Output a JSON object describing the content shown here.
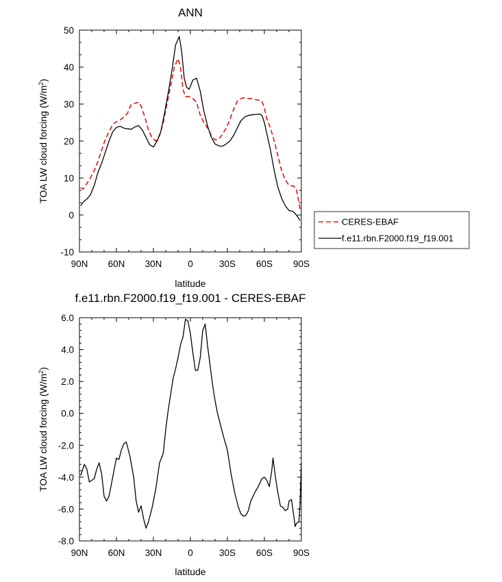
{
  "chart_data": [
    {
      "type": "line",
      "title": "ANN",
      "xlabel": "latitude",
      "ylabel": "TOA LW cloud forcing (W/m",
      "ylabel_sup": "2",
      "ylabel_close": ")",
      "xlim": [
        90,
        -90
      ],
      "ylim": [
        -10,
        50
      ],
      "x_ticks": [
        90,
        60,
        30,
        0,
        -30,
        -60,
        -90
      ],
      "x_tick_labels": [
        "90N",
        "60N",
        "30N",
        "0",
        "30S",
        "60S",
        "90S"
      ],
      "y_ticks": [
        -10,
        0,
        10,
        20,
        30,
        40,
        50
      ],
      "y_tick_labels": [
        "-10",
        "0",
        "10",
        "20",
        "30",
        "40",
        "50"
      ],
      "legend_position": "bottom-right, outside plot",
      "series": [
        {
          "name": "CERES-EBAF",
          "color": "#e01010",
          "dash": "dashed",
          "points": [
            [
              89,
              7.4
            ],
            [
              87,
              7.0
            ],
            [
              85,
              8.0
            ],
            [
              82,
              9.5
            ],
            [
              78,
              12.0
            ],
            [
              75,
              14.5
            ],
            [
              72,
              17.5
            ],
            [
              69,
              20.5
            ],
            [
              66,
              22.5
            ],
            [
              63,
              24.5
            ],
            [
              60,
              25.2
            ],
            [
              57,
              25.7
            ],
            [
              54,
              26.5
            ],
            [
              51,
              27.5
            ],
            [
              48,
              30.0
            ],
            [
              45,
              30.2
            ],
            [
              42,
              30.5
            ],
            [
              40,
              29.5
            ],
            [
              37,
              26.5
            ],
            [
              34,
              23.0
            ],
            [
              31,
              20.8
            ],
            [
              28,
              20.0
            ],
            [
              25,
              21.5
            ],
            [
              22,
              25.0
            ],
            [
              19,
              30.0
            ],
            [
              16,
              35.0
            ],
            [
              13,
              40.0
            ],
            [
              10,
              42.3
            ],
            [
              8,
              40.0
            ],
            [
              6,
              34.0
            ],
            [
              4,
              32.0
            ],
            [
              1,
              32.0
            ],
            [
              -2,
              31.5
            ],
            [
              -5,
              30.5
            ],
            [
              -8,
              27.0
            ],
            [
              -11,
              25.0
            ],
            [
              -14,
              23.5
            ],
            [
              -17,
              21.5
            ],
            [
              -20,
              20.3
            ],
            [
              -23,
              20.5
            ],
            [
              -26,
              21.8
            ],
            [
              -29,
              23.5
            ],
            [
              -32,
              25.8
            ],
            [
              -35,
              28.5
            ],
            [
              -38,
              30.8
            ],
            [
              -41,
              31.5
            ],
            [
              -44,
              31.7
            ],
            [
              -47,
              31.5
            ],
            [
              -50,
              31.5
            ],
            [
              -53,
              31.2
            ],
            [
              -56,
              31.0
            ],
            [
              -58,
              30.8
            ],
            [
              -60,
              29.0
            ],
            [
              -62,
              26.0
            ],
            [
              -65,
              23.5
            ],
            [
              -68,
              20.0
            ],
            [
              -71,
              16.0
            ],
            [
              -74,
              12.0
            ],
            [
              -77,
              9.5
            ],
            [
              -80,
              8.0
            ],
            [
              -84,
              7.8
            ],
            [
              -86,
              7.0
            ],
            [
              -88,
              3.5
            ],
            [
              -89,
              1.5
            ]
          ]
        },
        {
          "name": "f.e11.rbn.F2000.f19_f19.001",
          "color": "#000000",
          "dash": "solid",
          "points": [
            [
              89,
              2.5
            ],
            [
              87,
              3.5
            ],
            [
              84,
              4.3
            ],
            [
              81,
              5.5
            ],
            [
              78,
              8.0
            ],
            [
              75,
              11.5
            ],
            [
              72,
              14.0
            ],
            [
              69,
              17.0
            ],
            [
              66,
              20.0
            ],
            [
              63,
              22.5
            ],
            [
              60,
              23.7
            ],
            [
              57,
              24.0
            ],
            [
              54,
              23.5
            ],
            [
              51,
              23.3
            ],
            [
              48,
              23.2
            ],
            [
              45,
              23.8
            ],
            [
              42,
              24.2
            ],
            [
              39,
              23.0
            ],
            [
              36,
              21.0
            ],
            [
              33,
              19.0
            ],
            [
              30,
              18.4
            ],
            [
              27,
              20.0
            ],
            [
              24,
              22.5
            ],
            [
              21,
              27.5
            ],
            [
              18,
              33.0
            ],
            [
              15,
              39.0
            ],
            [
              12,
              46.0
            ],
            [
              9,
              48.3
            ],
            [
              7,
              44.0
            ],
            [
              5,
              37.0
            ],
            [
              3,
              34.5
            ],
            [
              1,
              34.0
            ],
            [
              -2,
              36.5
            ],
            [
              -5,
              37.0
            ],
            [
              -8,
              33.5
            ],
            [
              -11,
              28.0
            ],
            [
              -14,
              24.0
            ],
            [
              -17,
              21.0
            ],
            [
              -20,
              19.2
            ],
            [
              -23,
              18.7
            ],
            [
              -26,
              18.6
            ],
            [
              -29,
              19.2
            ],
            [
              -32,
              20.0
            ],
            [
              -35,
              21.5
            ],
            [
              -38,
              23.5
            ],
            [
              -41,
              25.5
            ],
            [
              -44,
              26.5
            ],
            [
              -47,
              26.9
            ],
            [
              -50,
              27.1
            ],
            [
              -53,
              27.2
            ],
            [
              -56,
              27.3
            ],
            [
              -58,
              27.0
            ],
            [
              -60,
              25.0
            ],
            [
              -62,
              22.0
            ],
            [
              -65,
              17.5
            ],
            [
              -68,
              12.0
            ],
            [
              -71,
              7.5
            ],
            [
              -74,
              4.5
            ],
            [
              -77,
              2.5
            ],
            [
              -80,
              1.2
            ],
            [
              -83,
              1.0
            ],
            [
              -86,
              0.0
            ],
            [
              -88,
              -1.0
            ],
            [
              -89,
              -1.5
            ]
          ]
        }
      ]
    },
    {
      "type": "line",
      "title": "f.e11.rbn.F2000.f19_f19.001 - CERES-EBAF",
      "xlabel": "latitude",
      "ylabel": "TOA LW cloud forcing (W/m",
      "ylabel_sup": "2",
      "ylabel_close": ")",
      "xlim": [
        90,
        -90
      ],
      "ylim": [
        -8,
        6
      ],
      "x_ticks": [
        90,
        60,
        30,
        0,
        -30,
        -60,
        -90
      ],
      "x_tick_labels": [
        "90N",
        "60N",
        "30N",
        "0",
        "30S",
        "60S",
        "90S"
      ],
      "y_ticks": [
        -8,
        -6,
        -4,
        -2,
        0,
        2,
        4,
        6
      ],
      "y_tick_labels": [
        "-8.0",
        "-6.0",
        "-4.0",
        "-2.0",
        "0.0",
        "2.0",
        "4.0",
        "6.0"
      ],
      "series": [
        {
          "color": "#000000",
          "dash": "solid",
          "points": [
            [
              89,
              -3.9
            ],
            [
              86,
              -3.2
            ],
            [
              84,
              -3.5
            ],
            [
              82,
              -4.3
            ],
            [
              80,
              -4.2
            ],
            [
              78,
              -4.1
            ],
            [
              76,
              -3.5
            ],
            [
              74,
              -3.1
            ],
            [
              72,
              -3.8
            ],
            [
              70,
              -5.2
            ],
            [
              68,
              -5.5
            ],
            [
              66,
              -5.2
            ],
            [
              63,
              -4.0
            ],
            [
              60,
              -2.8
            ],
            [
              58,
              -2.9
            ],
            [
              56,
              -2.3
            ],
            [
              54,
              -1.9
            ],
            [
              52,
              -1.8
            ],
            [
              49,
              -2.7
            ],
            [
              46,
              -4.0
            ],
            [
              44,
              -5.5
            ],
            [
              42,
              -6.2
            ],
            [
              40,
              -5.8
            ],
            [
              38,
              -6.6
            ],
            [
              36,
              -7.2
            ],
            [
              34,
              -6.8
            ],
            [
              31,
              -5.9
            ],
            [
              28,
              -4.7
            ],
            [
              25,
              -3.1
            ],
            [
              22,
              -2.5
            ],
            [
              20,
              -1.0
            ],
            [
              18,
              0.2
            ],
            [
              16,
              1.2
            ],
            [
              14,
              2.2
            ],
            [
              12,
              2.8
            ],
            [
              10,
              3.5
            ],
            [
              8,
              4.3
            ],
            [
              6,
              4.8
            ],
            [
              4,
              5.9
            ],
            [
              2,
              5.8
            ],
            [
              0,
              5.0
            ],
            [
              -2,
              3.8
            ],
            [
              -4,
              2.7
            ],
            [
              -6,
              2.7
            ],
            [
              -8,
              3.5
            ],
            [
              -10,
              5.2
            ],
            [
              -12,
              5.6
            ],
            [
              -14,
              4.2
            ],
            [
              -16,
              3.0
            ],
            [
              -18,
              1.8
            ],
            [
              -20,
              0.8
            ],
            [
              -22,
              0.0
            ],
            [
              -24,
              -0.6
            ],
            [
              -27,
              -1.5
            ],
            [
              -30,
              -2.3
            ],
            [
              -33,
              -3.8
            ],
            [
              -36,
              -5.0
            ],
            [
              -39,
              -5.9
            ],
            [
              -41,
              -6.3
            ],
            [
              -43,
              -6.45
            ],
            [
              -45,
              -6.4
            ],
            [
              -47,
              -6.1
            ],
            [
              -49,
              -5.5
            ],
            [
              -52,
              -5.0
            ],
            [
              -55,
              -4.6
            ],
            [
              -58,
              -4.1
            ],
            [
              -60,
              -4.0
            ],
            [
              -62,
              -4.2
            ],
            [
              -64,
              -4.6
            ],
            [
              -66,
              -3.6
            ],
            [
              -67,
              -2.8
            ],
            [
              -69,
              -4.0
            ],
            [
              -71,
              -5.0
            ],
            [
              -73,
              -5.8
            ],
            [
              -75,
              -5.9
            ],
            [
              -77,
              -6.1
            ],
            [
              -79,
              -6.0
            ],
            [
              -80,
              -5.5
            ],
            [
              -82,
              -5.4
            ],
            [
              -84,
              -6.5
            ],
            [
              -85,
              -7.1
            ],
            [
              -86,
              -6.9
            ],
            [
              -88,
              -6.8
            ],
            [
              -89,
              -5.6
            ],
            [
              -90,
              -3.1
            ]
          ]
        }
      ]
    }
  ]
}
